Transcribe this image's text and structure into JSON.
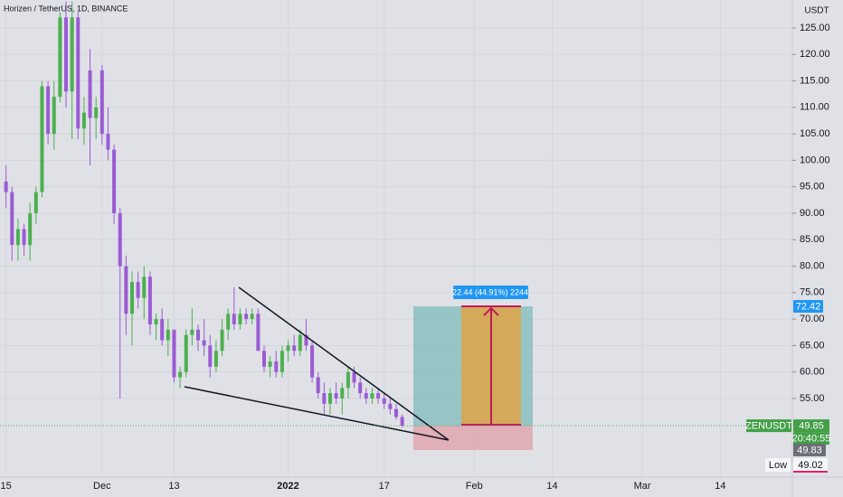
{
  "chart_data": {
    "type": "candlestick",
    "title": "Horizen / TetherUS, 1D, BINANCE",
    "y_unit": "USDT",
    "x": [
      "2021-11-15",
      "2021-11-16",
      "2021-11-17",
      "2021-11-18",
      "2021-11-19",
      "2021-11-20",
      "2021-11-21",
      "2021-11-22",
      "2021-11-23",
      "2021-11-24",
      "2021-11-25",
      "2021-11-26",
      "2021-11-27",
      "2021-11-28",
      "2021-11-29",
      "2021-11-30",
      "2021-12-01",
      "2021-12-02",
      "2021-12-03",
      "2021-12-04",
      "2021-12-05",
      "2021-12-06",
      "2021-12-07",
      "2021-12-08",
      "2021-12-09",
      "2021-12-10",
      "2021-12-11",
      "2021-12-12",
      "2021-12-13",
      "2021-12-14",
      "2021-12-15",
      "2021-12-16",
      "2021-12-17",
      "2021-12-18",
      "2021-12-19",
      "2021-12-20",
      "2021-12-21",
      "2021-12-22",
      "2021-12-23",
      "2021-12-24",
      "2021-12-25",
      "2021-12-26",
      "2021-12-27",
      "2021-12-28",
      "2021-12-29",
      "2021-12-30",
      "2021-12-31",
      "2022-01-01",
      "2022-01-02",
      "2022-01-03",
      "2022-01-04",
      "2022-01-05",
      "2022-01-06",
      "2022-01-07",
      "2022-01-08",
      "2022-01-09",
      "2022-01-10",
      "2022-01-11",
      "2022-01-12",
      "2022-01-13",
      "2022-01-14",
      "2022-01-15",
      "2022-01-16",
      "2022-01-17",
      "2022-01-18",
      "2022-01-19",
      "2022-01-20"
    ],
    "open": [
      96,
      94,
      84,
      87,
      84,
      90,
      94,
      114,
      105,
      112,
      127,
      113,
      127,
      106,
      117,
      108,
      117,
      105,
      102,
      90,
      80,
      71,
      77,
      74,
      78,
      69,
      70,
      66,
      68,
      59,
      60,
      67,
      68,
      66,
      65,
      61,
      64,
      68,
      71,
      69,
      71,
      70,
      71,
      64,
      61,
      62,
      60,
      64,
      65,
      64,
      67,
      65,
      59,
      56,
      54,
      56,
      55,
      57,
      60,
      58,
      56,
      55,
      56,
      55,
      54,
      53,
      51.5
    ],
    "high": [
      99,
      95,
      89,
      88,
      92,
      95,
      115,
      115,
      115,
      128,
      130,
      130,
      128,
      112,
      121,
      112,
      118,
      110,
      103,
      91,
      82,
      79,
      79,
      80,
      79,
      71,
      72,
      70,
      68,
      61,
      68,
      72,
      69,
      70,
      67,
      66,
      70,
      72,
      76,
      72,
      72,
      72,
      72,
      65,
      63,
      64,
      65,
      66,
      67,
      68,
      70,
      66,
      60,
      58,
      57,
      58,
      58,
      61,
      61,
      59,
      57,
      57,
      57,
      56,
      55,
      54,
      52
    ],
    "low": [
      91,
      81,
      81,
      82,
      81,
      88,
      93,
      103,
      102,
      111,
      110,
      104,
      104,
      103,
      99,
      104,
      103,
      100,
      88,
      55,
      67,
      65,
      72,
      70,
      67,
      66,
      65,
      63,
      58,
      57,
      59,
      65,
      64,
      63,
      59,
      60,
      63,
      66,
      68,
      68,
      69,
      69,
      64,
      60,
      59,
      59,
      59,
      62,
      63,
      63,
      64,
      58,
      55,
      52,
      52,
      54,
      52,
      55,
      57,
      55,
      54,
      54,
      54,
      53,
      52,
      51,
      49.5
    ],
    "close": [
      94,
      84,
      87,
      84,
      90,
      94,
      114,
      105,
      112,
      127,
      113,
      127,
      106,
      109,
      108,
      110,
      105,
      102,
      90,
      80,
      71,
      77,
      74,
      78,
      69,
      70,
      66,
      68,
      59,
      60,
      67,
      68,
      66,
      65,
      61,
      64,
      68,
      71,
      69,
      71,
      70,
      71,
      64,
      61,
      62,
      60,
      64,
      65,
      64,
      67,
      65,
      59,
      56,
      54,
      56,
      55,
      57,
      60,
      58,
      56,
      55,
      56,
      55,
      54,
      53,
      51.5,
      49.85
    ],
    "up_color": "#4caf50",
    "down_color": "#9b5bd4",
    "xlim": [
      "2021-11-14",
      "2022-03-26"
    ],
    "xticks": [
      {
        "value": "2021-11-15",
        "label": "15"
      },
      {
        "value": "2021-12-01",
        "label": "Dec"
      },
      {
        "value": "2021-12-13",
        "label": "13"
      },
      {
        "value": "2022-01-01",
        "label": "2022"
      },
      {
        "value": "2022-01-17",
        "label": "17"
      },
      {
        "value": "2022-02-01",
        "label": "Feb"
      },
      {
        "value": "2022-02-14",
        "label": "14"
      },
      {
        "value": "2022-03-01",
        "label": "Mar"
      },
      {
        "value": "2022-03-14",
        "label": "14"
      }
    ],
    "ylim": [
      40.14,
      130.29
    ],
    "yticks": [
      {
        "value": 55,
        "label": "55.00"
      },
      {
        "value": 60,
        "label": "60.00"
      },
      {
        "value": 65,
        "label": "65.00"
      },
      {
        "value": 70,
        "label": "70.00"
      },
      {
        "value": 75,
        "label": "75.00"
      },
      {
        "value": 80,
        "label": "80.00"
      },
      {
        "value": 85,
        "label": "85.00"
      },
      {
        "value": 90,
        "label": "90.00"
      },
      {
        "value": 95,
        "label": "95.00"
      },
      {
        "value": 100,
        "label": "100.00"
      },
      {
        "value": 105,
        "label": "105.00"
      },
      {
        "value": 110,
        "label": "110.00"
      },
      {
        "value": 115,
        "label": "115.00"
      },
      {
        "value": 120,
        "label": "120.00"
      },
      {
        "value": 125,
        "label": "125.00"
      }
    ],
    "grid": true,
    "target_price": 72.42,
    "symbol": "ZENUSDT",
    "last_price": 49.85,
    "countdown": "20:40:55",
    "bid_price": 49.83,
    "low_label": "Low",
    "low_price": 49.02,
    "position_label": "22.44 (44.91%) 2244"
  }
}
